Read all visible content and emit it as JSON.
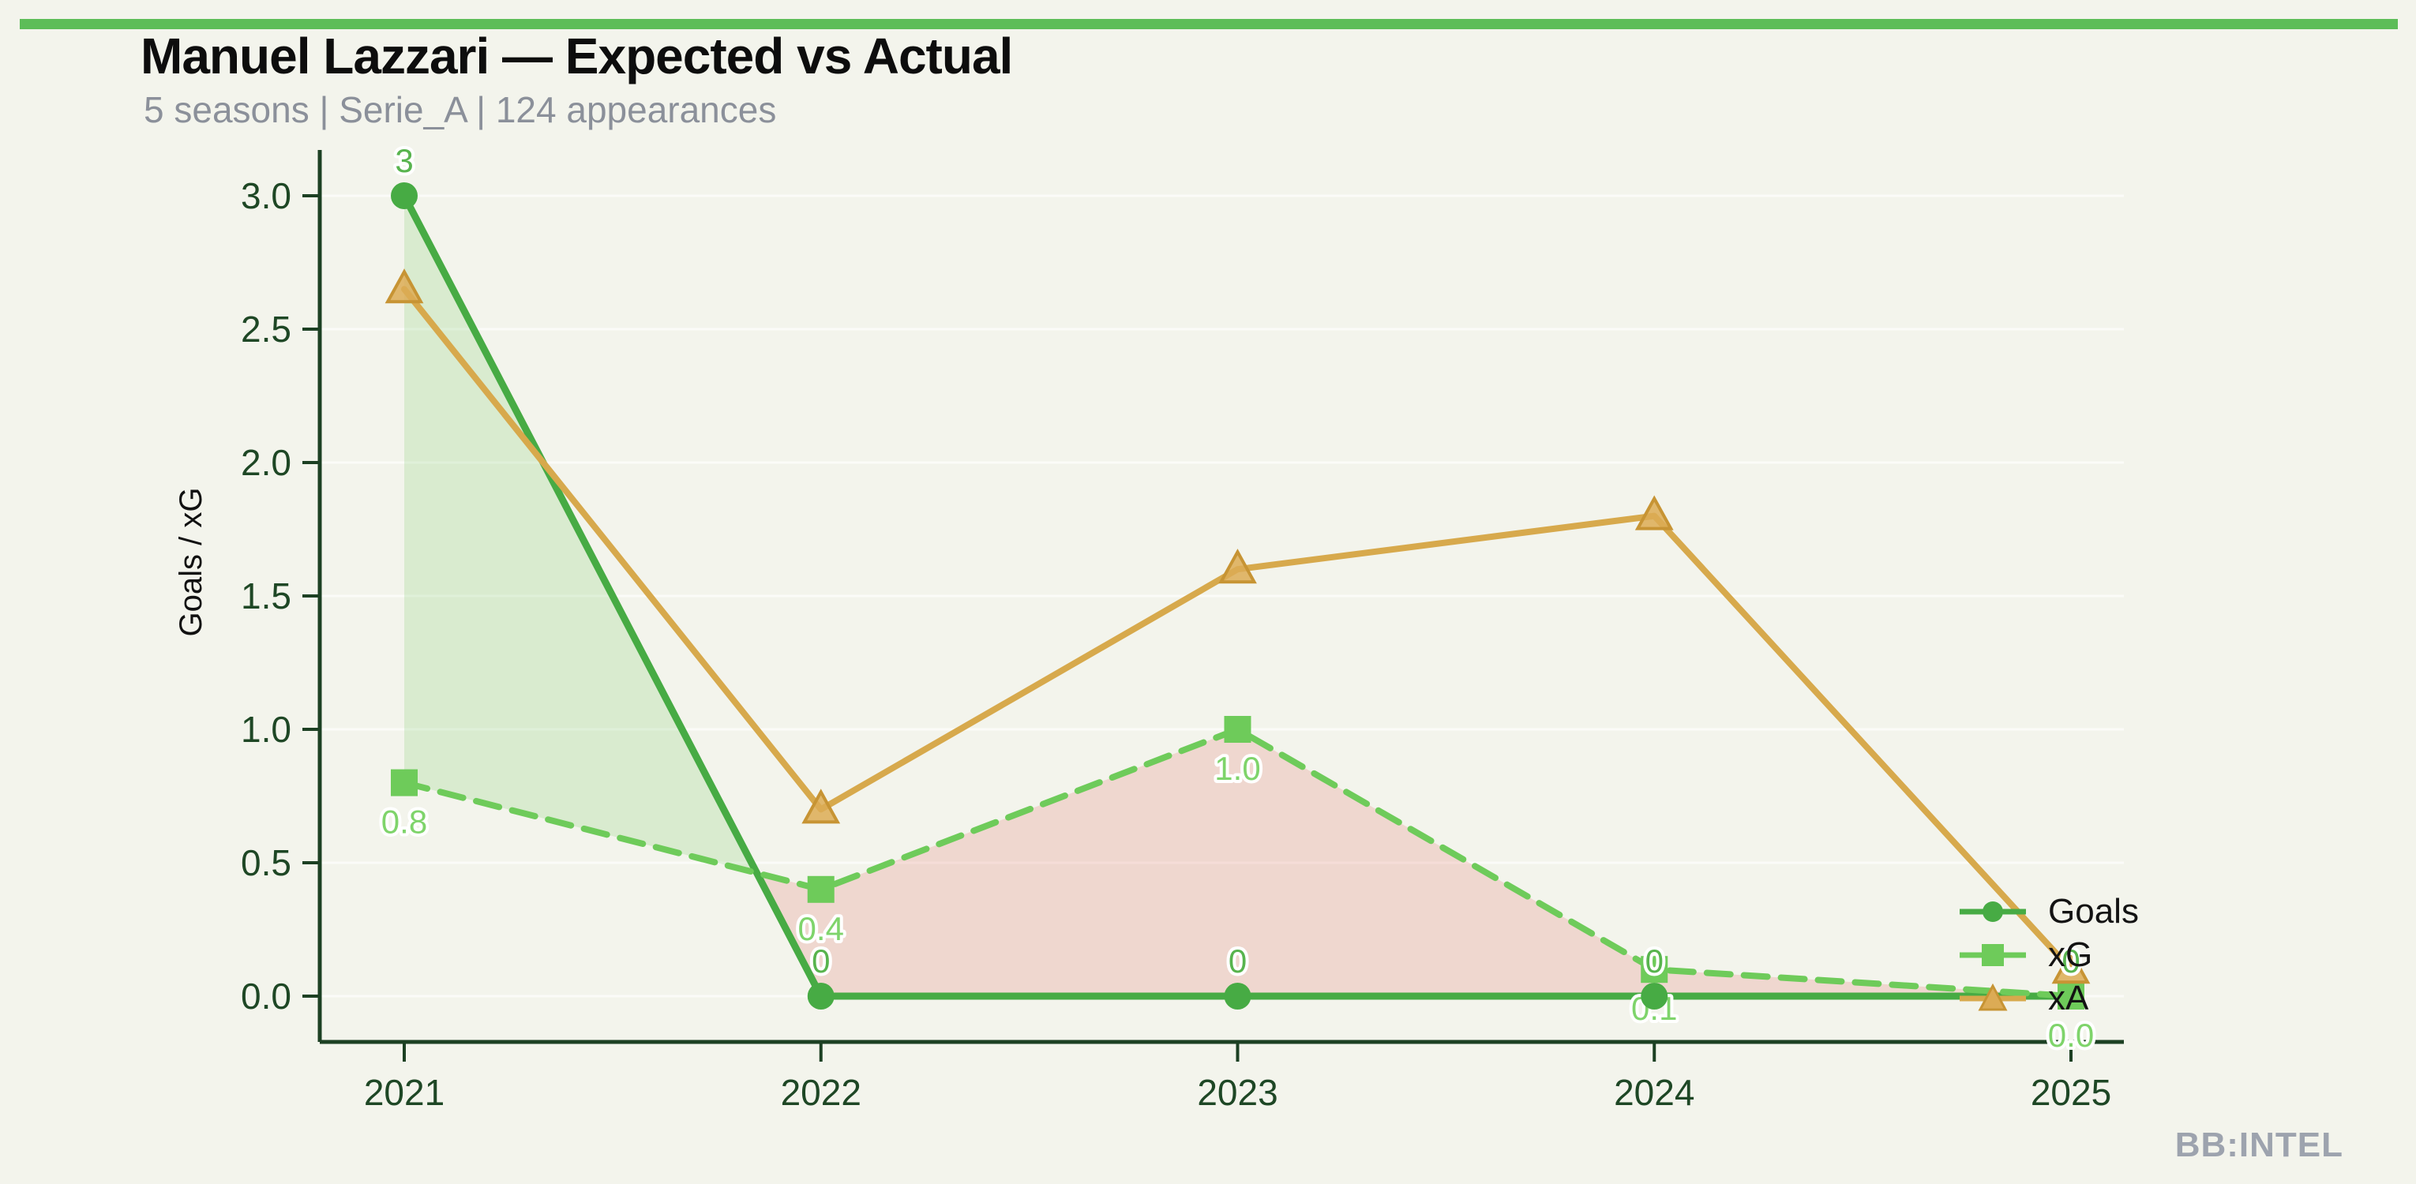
{
  "page": {
    "background": "#f3f4ec"
  },
  "accent_bar": {
    "color": "#5dbd58"
  },
  "header": {
    "title": "Manuel Lazzari — Expected vs Actual",
    "subtitle": "5 seasons | Serie_A | 124 appearances",
    "subtitle_color": "#8b909a"
  },
  "watermark": {
    "text": "BB:INTEL",
    "color": "#9da3ae"
  },
  "legend": {
    "items": [
      {
        "label": "Goals"
      },
      {
        "label": "xG"
      },
      {
        "label": "xA"
      }
    ]
  },
  "chart_data": {
    "type": "line",
    "title": "Manuel Lazzari — Expected vs Actual",
    "xlabel": "",
    "ylabel": "Goals / xG",
    "categories": [
      "2021",
      "2022",
      "2023",
      "2024",
      "2025"
    ],
    "ylim": [
      0,
      3
    ],
    "yticks": [
      0.0,
      0.5,
      1.0,
      1.5,
      2.0,
      2.5,
      3.0
    ],
    "ytick_labels": [
      "0.0",
      "0.5",
      "1.0",
      "1.5",
      "2.0",
      "2.5",
      "3.0"
    ],
    "grid": "faint-horizontal",
    "gridline_color": "rgba(255,255,255,0.65)",
    "axis_color": "#1c4023",
    "axis_text_color": "#1e4725",
    "legend_position": "inside-right",
    "series": [
      {
        "name": "Goals",
        "style": "solid",
        "marker": "circle",
        "color": "#47ab44",
        "label_color": "#58b44e",
        "values": [
          3,
          0,
          0,
          0,
          0
        ],
        "point_labels": [
          "3",
          "0",
          "0",
          "0",
          "0"
        ],
        "label_side": "above"
      },
      {
        "name": "xG",
        "style": "dashed",
        "marker": "square",
        "color": "#6ecb5a",
        "label_color": "#7fd46b",
        "values": [
          0.8,
          0.4,
          1.0,
          0.1,
          0.0
        ],
        "point_labels": [
          "0.8",
          "0.4",
          "1.0",
          "0.1",
          "0.0"
        ],
        "label_side": "below"
      },
      {
        "name": "xA",
        "style": "solid",
        "marker": "triangle",
        "color": "#d7a94c",
        "marker_fill": "#dcab55",
        "marker_edge": "#c79434",
        "values": [
          2.65,
          0.7,
          1.6,
          1.8,
          0.1
        ],
        "point_labels": [
          "",
          "",
          "",
          "",
          ""
        ],
        "label_side": "none"
      }
    ],
    "fill_between": {
      "upper": "Goals",
      "lower": "xG",
      "positive_color": "rgba(116,200,94,0.20)",
      "negative_color": "rgba(229,115,104,0.22)"
    }
  }
}
